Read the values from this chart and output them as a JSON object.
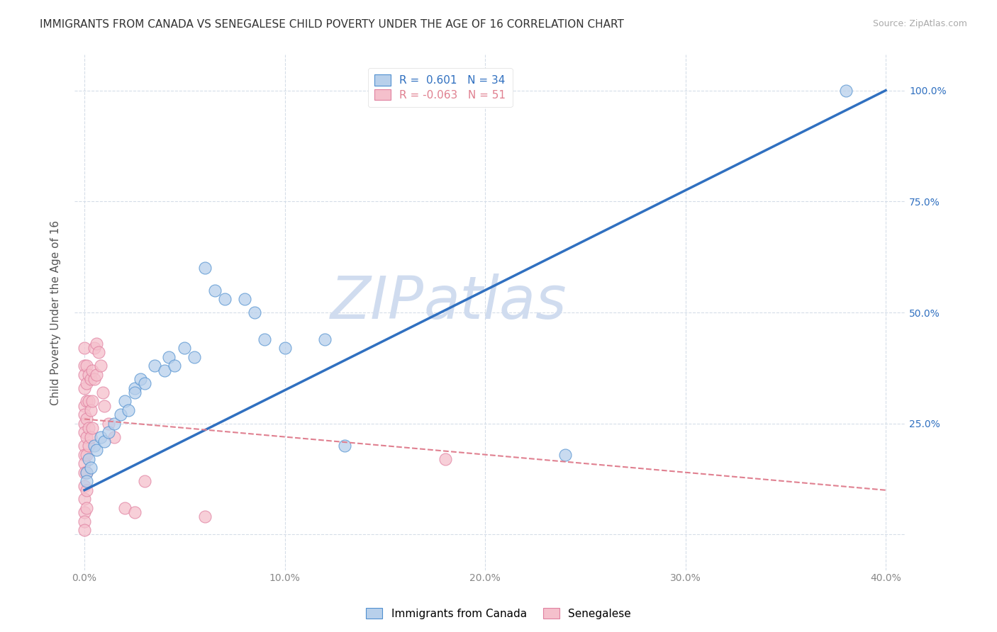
{
  "title": "IMMIGRANTS FROM CANADA VS SENEGALESE CHILD POVERTY UNDER THE AGE OF 16 CORRELATION CHART",
  "source": "Source: ZipAtlas.com",
  "ylabel": "Child Poverty Under the Age of 16",
  "watermark_zip": "ZIP",
  "watermark_atlas": "atlas",
  "blue_label": "Immigrants from Canada",
  "pink_label": "Senegalese",
  "blue_R": 0.601,
  "blue_N": 34,
  "pink_R": -0.063,
  "pink_N": 51,
  "blue_fill": "#b8d0eb",
  "blue_edge": "#5090d0",
  "pink_fill": "#f5c0cc",
  "pink_edge": "#e080a0",
  "blue_line_color": "#3070c0",
  "pink_line_color": "#e08090",
  "blue_scatter": [
    [
      0.001,
      0.14
    ],
    [
      0.001,
      0.12
    ],
    [
      0.002,
      0.17
    ],
    [
      0.003,
      0.15
    ],
    [
      0.005,
      0.2
    ],
    [
      0.006,
      0.19
    ],
    [
      0.008,
      0.22
    ],
    [
      0.01,
      0.21
    ],
    [
      0.012,
      0.23
    ],
    [
      0.015,
      0.25
    ],
    [
      0.018,
      0.27
    ],
    [
      0.02,
      0.3
    ],
    [
      0.022,
      0.28
    ],
    [
      0.025,
      0.33
    ],
    [
      0.025,
      0.32
    ],
    [
      0.028,
      0.35
    ],
    [
      0.03,
      0.34
    ],
    [
      0.035,
      0.38
    ],
    [
      0.04,
      0.37
    ],
    [
      0.042,
      0.4
    ],
    [
      0.045,
      0.38
    ],
    [
      0.05,
      0.42
    ],
    [
      0.055,
      0.4
    ],
    [
      0.06,
      0.6
    ],
    [
      0.065,
      0.55
    ],
    [
      0.07,
      0.53
    ],
    [
      0.08,
      0.53
    ],
    [
      0.085,
      0.5
    ],
    [
      0.09,
      0.44
    ],
    [
      0.1,
      0.42
    ],
    [
      0.12,
      0.44
    ],
    [
      0.13,
      0.2
    ],
    [
      0.24,
      0.18
    ],
    [
      0.38,
      1.0
    ]
  ],
  "pink_scatter": [
    [
      0.0,
      0.42
    ],
    [
      0.0,
      0.38
    ],
    [
      0.0,
      0.36
    ],
    [
      0.0,
      0.33
    ],
    [
      0.0,
      0.29
    ],
    [
      0.0,
      0.27
    ],
    [
      0.0,
      0.25
    ],
    [
      0.0,
      0.23
    ],
    [
      0.0,
      0.2
    ],
    [
      0.0,
      0.18
    ],
    [
      0.0,
      0.16
    ],
    [
      0.0,
      0.14
    ],
    [
      0.0,
      0.11
    ],
    [
      0.0,
      0.08
    ],
    [
      0.0,
      0.05
    ],
    [
      0.0,
      0.03
    ],
    [
      0.0,
      0.01
    ],
    [
      0.001,
      0.38
    ],
    [
      0.001,
      0.34
    ],
    [
      0.001,
      0.3
    ],
    [
      0.001,
      0.26
    ],
    [
      0.001,
      0.22
    ],
    [
      0.001,
      0.18
    ],
    [
      0.001,
      0.14
    ],
    [
      0.001,
      0.1
    ],
    [
      0.001,
      0.06
    ],
    [
      0.002,
      0.36
    ],
    [
      0.002,
      0.3
    ],
    [
      0.002,
      0.24
    ],
    [
      0.002,
      0.2
    ],
    [
      0.003,
      0.35
    ],
    [
      0.003,
      0.28
    ],
    [
      0.003,
      0.22
    ],
    [
      0.004,
      0.37
    ],
    [
      0.004,
      0.3
    ],
    [
      0.004,
      0.24
    ],
    [
      0.005,
      0.42
    ],
    [
      0.005,
      0.35
    ],
    [
      0.006,
      0.43
    ],
    [
      0.006,
      0.36
    ],
    [
      0.007,
      0.41
    ],
    [
      0.008,
      0.38
    ],
    [
      0.009,
      0.32
    ],
    [
      0.01,
      0.29
    ],
    [
      0.012,
      0.25
    ],
    [
      0.015,
      0.22
    ],
    [
      0.02,
      0.06
    ],
    [
      0.025,
      0.05
    ],
    [
      0.03,
      0.12
    ],
    [
      0.18,
      0.17
    ],
    [
      0.06,
      0.04
    ]
  ],
  "xlim_data": [
    -0.005,
    0.41
  ],
  "ylim_data": [
    -0.08,
    1.08
  ],
  "xticks": [
    0.0,
    0.1,
    0.2,
    0.3,
    0.4
  ],
  "xticklabels": [
    "0.0%",
    "10.0%",
    "20.0%",
    "30.0%",
    "40.0%"
  ],
  "yticks": [
    0.0,
    0.25,
    0.5,
    0.75,
    1.0
  ],
  "yticklabels_right": [
    "",
    "25.0%",
    "50.0%",
    "75.0%",
    "100.0%"
  ],
  "grid_color": "#d5dde8",
  "background_color": "#ffffff",
  "title_fontsize": 11,
  "axis_label_fontsize": 11,
  "tick_fontsize": 10,
  "legend_fontsize": 11,
  "watermark_color": "#d0dcef",
  "watermark_fontsize": 60,
  "blue_line_x": [
    0.0,
    0.4
  ],
  "blue_line_y": [
    0.1,
    1.0
  ],
  "pink_line_x": [
    0.0,
    0.4
  ],
  "pink_line_y": [
    0.26,
    0.1
  ]
}
